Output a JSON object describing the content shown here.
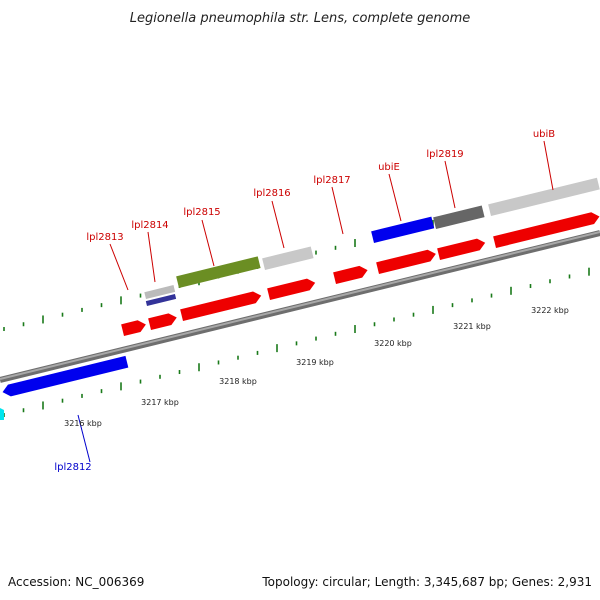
{
  "title": "Legionella pneumophila str. Lens, complete genome",
  "footer": {
    "accession": "Accession: NC_006369",
    "summary": "Topology: circular; Length: 3,345,687 bp; Genes: 2,931"
  },
  "colors": {
    "backbone": "#8a8a8a",
    "tick": "#1a7a1a",
    "label_red": "#cc0000",
    "label_blue": "#0000cc"
  },
  "kbp_labels": [
    {
      "text": "3216 kbp"
    },
    {
      "text": "3217 kbp"
    },
    {
      "text": "3218 kbp"
    },
    {
      "text": "3219 kbp"
    },
    {
      "text": "3220 kbp"
    },
    {
      "text": "3221 kbp"
    },
    {
      "text": "3222 kbp"
    }
  ],
  "genes": [
    {
      "name": "lpl2812",
      "label": "lpl2812",
      "strand": "reverse",
      "color": "#0000ee"
    },
    {
      "name": "lpl2813",
      "label": "lpl2813",
      "strand": "forward",
      "color": "#ee0000"
    },
    {
      "name": "lpl2814",
      "label": "lpl2814",
      "strand": "forward",
      "color": "#ee0000"
    },
    {
      "name": "lpl2815",
      "label": "lpl2815",
      "strand": "forward",
      "color": "#ee0000"
    },
    {
      "name": "lpl2816",
      "label": "lpl2816",
      "strand": "forward",
      "color": "#ee0000"
    },
    {
      "name": "lpl2817",
      "label": "lpl2817",
      "strand": "forward",
      "color": "#ee0000"
    },
    {
      "name": "ubiE",
      "label": "ubiE",
      "strand": "forward",
      "color": "#ee0000"
    },
    {
      "name": "lpl2819",
      "label": "lpl2819",
      "strand": "forward",
      "color": "#ee0000"
    },
    {
      "name": "ubiB",
      "label": "ubiB",
      "strand": "forward",
      "color": "#ee0000"
    }
  ]
}
